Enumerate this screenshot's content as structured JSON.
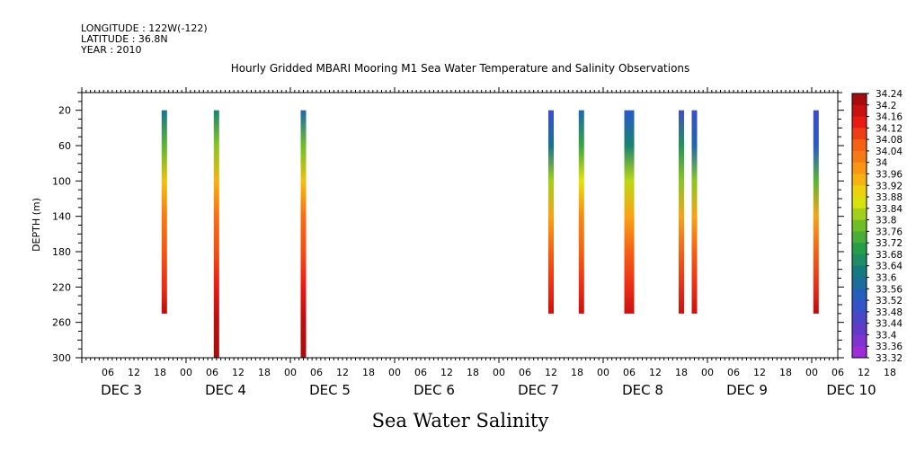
{
  "header": {
    "longitude": "LONGITUDE : 122W(-122)",
    "latitude": "LATITUDE : 36.8N",
    "year": "YEAR : 2010"
  },
  "chart_data": {
    "type": "heatmap",
    "title": "Hourly Gridded MBARI Mooring M1 Sea Water Temperature and Salinity Observations",
    "xlabel": "Sea Water Salinity",
    "ylabel": "DEPTH (m)",
    "ylim": [
      0,
      300
    ],
    "y_inverted": true,
    "xlim_hours_from_dec3_00": [
      0,
      174
    ],
    "y_ticks": [
      20,
      60,
      100,
      140,
      180,
      220,
      260,
      300
    ],
    "x_hour_tick_labels": [
      "06",
      "12",
      "18",
      "00",
      "06",
      "12",
      "18",
      "00",
      "06",
      "12",
      "18",
      "00",
      "06",
      "12",
      "18",
      "00",
      "06",
      "12",
      "18",
      "00",
      "06",
      "12",
      "18",
      "00",
      "06",
      "12",
      "18",
      "00",
      "06",
      "12",
      "18",
      "00"
    ],
    "x_day_labels": [
      {
        "label": "DEC  3",
        "at_hour": 0
      },
      {
        "label": "DEC  4",
        "at_hour": 24
      },
      {
        "label": "DEC  5",
        "at_hour": 48
      },
      {
        "label": "DEC  6",
        "at_hour": 72
      },
      {
        "label": "DEC  7",
        "at_hour": 96
      },
      {
        "label": "DEC  8",
        "at_hour": 120
      },
      {
        "label": "DEC  9",
        "at_hour": 144
      },
      {
        "label": "DEC 10",
        "at_hour": 168
      }
    ],
    "colorbar": {
      "min": 33.32,
      "max": 34.24,
      "labels": [
        "34.24",
        "34.2",
        "34.16",
        "34.12",
        "34.08",
        "34.04",
        "34",
        "33.96",
        "33.92",
        "33.88",
        "33.84",
        "33.8",
        "33.76",
        "33.72",
        "33.68",
        "33.64",
        "33.6",
        "33.56",
        "33.52",
        "33.48",
        "33.44",
        "33.4",
        "33.36",
        "33.32"
      ]
    },
    "profiles": [
      {
        "time": "DEC 3 19:00",
        "hour": 19,
        "max_depth": 250,
        "points": [
          [
            20,
            33.6
          ],
          [
            60,
            33.76
          ],
          [
            100,
            33.92
          ],
          [
            140,
            34.02
          ],
          [
            180,
            34.07
          ],
          [
            220,
            34.12
          ],
          [
            250,
            34.2
          ]
        ]
      },
      {
        "time": "DEC 4 07:00",
        "hour": 31,
        "max_depth": 300,
        "points": [
          [
            20,
            33.64
          ],
          [
            60,
            33.8
          ],
          [
            100,
            33.94
          ],
          [
            140,
            34.04
          ],
          [
            180,
            34.08
          ],
          [
            220,
            34.14
          ],
          [
            260,
            34.2
          ],
          [
            300,
            34.22
          ]
        ]
      },
      {
        "time": "DEC 5 03:00",
        "hour": 51,
        "max_depth": 300,
        "points": [
          [
            20,
            33.56
          ],
          [
            60,
            33.78
          ],
          [
            100,
            33.92
          ],
          [
            140,
            34.04
          ],
          [
            180,
            34.08
          ],
          [
            220,
            34.14
          ],
          [
            260,
            34.2
          ],
          [
            300,
            34.22
          ]
        ]
      },
      {
        "time": "DEC 7 12:00",
        "hour": 108,
        "max_depth": 250,
        "points": [
          [
            20,
            33.48
          ],
          [
            60,
            33.6
          ],
          [
            100,
            33.82
          ],
          [
            140,
            33.96
          ],
          [
            180,
            34.06
          ],
          [
            220,
            34.12
          ],
          [
            250,
            34.18
          ]
        ]
      },
      {
        "time": "DEC 7 19:00",
        "hour": 115,
        "max_depth": 250,
        "points": [
          [
            20,
            33.56
          ],
          [
            60,
            33.72
          ],
          [
            100,
            33.88
          ],
          [
            140,
            34.0
          ],
          [
            180,
            34.06
          ],
          [
            220,
            34.12
          ],
          [
            250,
            34.18
          ]
        ]
      },
      {
        "time": "DEC 8 06:00",
        "hour": 126,
        "max_depth": 250,
        "points": [
          [
            20,
            33.52
          ],
          [
            60,
            33.64
          ],
          [
            100,
            33.84
          ],
          [
            140,
            33.96
          ],
          [
            180,
            34.06
          ],
          [
            220,
            34.12
          ],
          [
            250,
            34.18
          ]
        ]
      },
      {
        "time": "DEC 8 18:00",
        "hour": 138,
        "max_depth": 250,
        "points": [
          [
            20,
            33.48
          ],
          [
            60,
            33.68
          ],
          [
            100,
            33.8
          ],
          [
            140,
            33.96
          ],
          [
            180,
            34.06
          ],
          [
            220,
            34.12
          ],
          [
            250,
            34.18
          ]
        ]
      },
      {
        "time": "DEC 8 21:00",
        "hour": 141,
        "max_depth": 250,
        "points": [
          [
            20,
            33.48
          ],
          [
            60,
            33.56
          ],
          [
            100,
            33.8
          ],
          [
            140,
            33.96
          ],
          [
            180,
            34.06
          ],
          [
            220,
            34.12
          ],
          [
            250,
            34.18
          ]
        ]
      },
      {
        "time": "DEC 10 01:00",
        "hour": 169,
        "max_depth": 250,
        "points": [
          [
            20,
            33.48
          ],
          [
            60,
            33.52
          ],
          [
            100,
            33.76
          ],
          [
            140,
            33.96
          ],
          [
            180,
            34.06
          ],
          [
            220,
            34.12
          ],
          [
            250,
            34.2
          ]
        ]
      }
    ]
  }
}
